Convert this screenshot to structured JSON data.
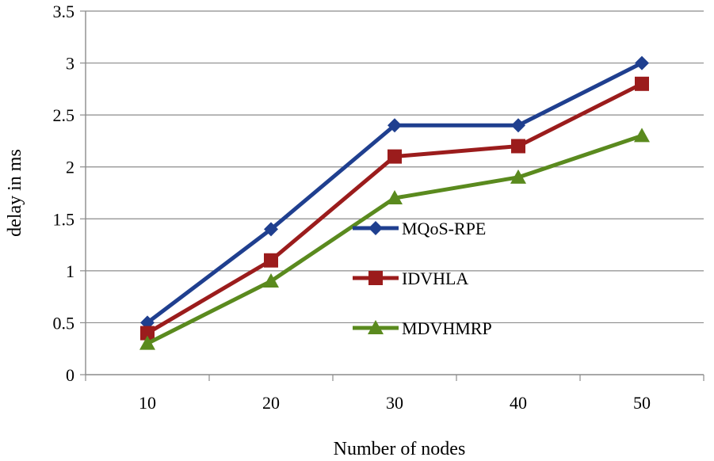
{
  "chart_data": {
    "type": "line",
    "title": "",
    "xlabel": "Number of nodes",
    "ylabel": "delay in ms",
    "categories": [
      "10",
      "20",
      "30",
      "40",
      "50"
    ],
    "ylim": [
      0,
      3.5
    ],
    "yticks": [
      "0",
      "0.5",
      "1",
      "1.5",
      "2",
      "2.5",
      "3",
      "3.5"
    ],
    "grid": true,
    "legend_position": "center",
    "series": [
      {
        "name": "MQoS-RPE",
        "values": [
          0.5,
          1.4,
          2.4,
          2.4,
          3.0
        ],
        "color": "#1f3f8f",
        "marker": "diamond"
      },
      {
        "name": "IDVHLA",
        "values": [
          0.4,
          1.1,
          2.1,
          2.2,
          2.8
        ],
        "color": "#9b1c1c",
        "marker": "square"
      },
      {
        "name": "MDVHMRP",
        "values": [
          0.3,
          0.9,
          1.7,
          1.9,
          2.3
        ],
        "color": "#5a8a1e",
        "marker": "triangle"
      }
    ]
  }
}
